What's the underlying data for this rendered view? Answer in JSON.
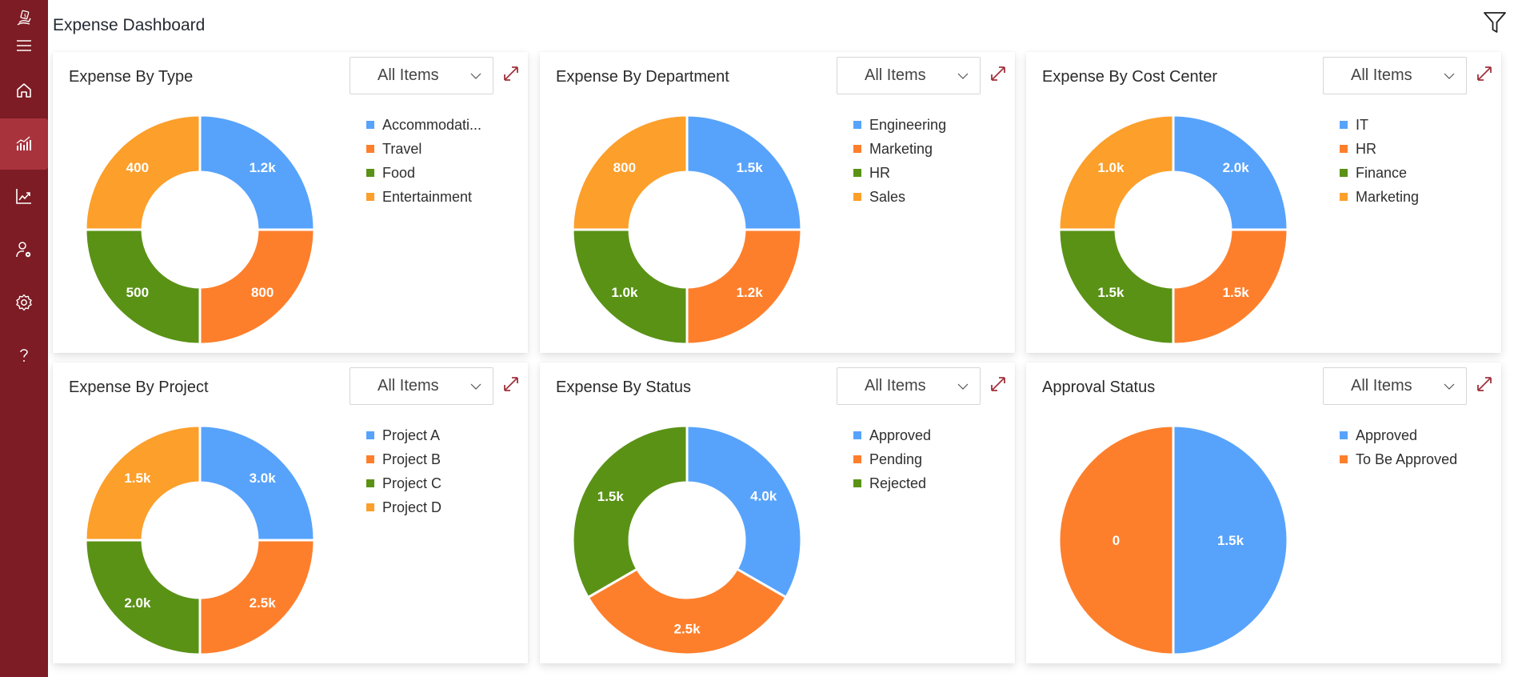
{
  "app": {
    "title": "Expense Dashboard"
  },
  "sidebar": {
    "items": [
      {
        "name": "logo",
        "icon": "expense-logo-icon"
      },
      {
        "name": "menu",
        "icon": "hamburger-menu-icon"
      },
      {
        "name": "home",
        "icon": "home-icon"
      },
      {
        "name": "dashboard",
        "icon": "bar-chart-icon",
        "active": true
      },
      {
        "name": "reports",
        "icon": "trend-chart-icon"
      },
      {
        "name": "user-settings",
        "icon": "user-gear-icon"
      },
      {
        "name": "settings",
        "icon": "gear-icon"
      },
      {
        "name": "help",
        "icon": "question-mark-icon"
      }
    ]
  },
  "toolbar": {
    "filter_icon": "filter-icon"
  },
  "colors": {
    "sidebar": "#7d1c24",
    "sidebar_active": "#a9333d",
    "blue": "#57a3fc",
    "orange": "#fd7f2c",
    "green": "#5a9216",
    "amber": "#fc9f2b",
    "expand_icon": "#a0333d"
  },
  "cards": [
    {
      "title": "Expense By Type",
      "dropdown": "All Items",
      "legend": [
        "Accommodati...",
        "Travel",
        "Food",
        "Entertainment"
      ]
    },
    {
      "title": "Expense By Department",
      "dropdown": "All Items",
      "legend": [
        "Engineering",
        "Marketing",
        "HR",
        "Sales"
      ]
    },
    {
      "title": "Expense By Cost Center",
      "dropdown": "All Items",
      "legend": [
        "IT",
        "HR",
        "Finance",
        "Marketing"
      ]
    },
    {
      "title": "Expense By Project",
      "dropdown": "All Items",
      "legend": [
        "Project A",
        "Project B",
        "Project C",
        "Project D"
      ]
    },
    {
      "title": "Expense By Status",
      "dropdown": "All Items",
      "legend": [
        "Approved",
        "Pending",
        "Rejected"
      ]
    },
    {
      "title": "Approval Status",
      "dropdown": "All Items",
      "legend": [
        "Approved",
        "To Be Approved"
      ]
    }
  ],
  "chart_data": [
    {
      "type": "pie",
      "variant": "donut",
      "title": "Expense By Type",
      "categories": [
        "Accommodation",
        "Travel",
        "Food",
        "Entertainment"
      ],
      "values": [
        1200,
        800,
        500,
        400
      ],
      "labels": [
        "1.2k",
        "800",
        "500",
        "400"
      ],
      "colors": [
        "#57a3fc",
        "#fd7f2c",
        "#5a9216",
        "#fc9f2b"
      ],
      "slice_shares": [
        0.25,
        0.25,
        0.25,
        0.25
      ],
      "legend": "right"
    },
    {
      "type": "pie",
      "variant": "donut",
      "title": "Expense By Department",
      "categories": [
        "Engineering",
        "Marketing",
        "HR",
        "Sales"
      ],
      "values": [
        1500,
        1200,
        1000,
        800
      ],
      "labels": [
        "1.5k",
        "1.2k",
        "1.0k",
        "800"
      ],
      "colors": [
        "#57a3fc",
        "#fd7f2c",
        "#5a9216",
        "#fc9f2b"
      ],
      "slice_shares": [
        0.25,
        0.25,
        0.25,
        0.25
      ],
      "legend": "right"
    },
    {
      "type": "pie",
      "variant": "donut",
      "title": "Expense By Cost Center",
      "categories": [
        "IT",
        "HR",
        "Finance",
        "Marketing"
      ],
      "values": [
        2000,
        1500,
        1500,
        1000
      ],
      "labels": [
        "2.0k",
        "1.5k",
        "1.5k",
        "1.0k"
      ],
      "colors": [
        "#57a3fc",
        "#fd7f2c",
        "#5a9216",
        "#fc9f2b"
      ],
      "slice_shares": [
        0.25,
        0.25,
        0.25,
        0.25
      ],
      "legend": "right"
    },
    {
      "type": "pie",
      "variant": "donut",
      "title": "Expense By Project",
      "categories": [
        "Project A",
        "Project B",
        "Project C",
        "Project D"
      ],
      "values": [
        3000,
        2500,
        2000,
        1500
      ],
      "labels": [
        "3.0k",
        "2.5k",
        "2.0k",
        "1.5k"
      ],
      "colors": [
        "#57a3fc",
        "#fd7f2c",
        "#5a9216",
        "#fc9f2b"
      ],
      "slice_shares": [
        0.25,
        0.25,
        0.25,
        0.25
      ],
      "legend": "right"
    },
    {
      "type": "pie",
      "variant": "donut",
      "title": "Expense By Status",
      "categories": [
        "Approved",
        "Pending",
        "Rejected"
      ],
      "values": [
        4000,
        2500,
        1500
      ],
      "labels": [
        "4.0k",
        "2.5k",
        "1.5k"
      ],
      "colors": [
        "#57a3fc",
        "#fd7f2c",
        "#5a9216"
      ],
      "slice_shares": [
        0.3333,
        0.3333,
        0.3334
      ],
      "legend": "right"
    },
    {
      "type": "pie",
      "variant": "pie",
      "title": "Approval Status",
      "categories": [
        "Approved",
        "To Be Approved"
      ],
      "values": [
        1500,
        0
      ],
      "labels": [
        "1.5k",
        "0"
      ],
      "colors": [
        "#57a3fc",
        "#fd7f2c"
      ],
      "slice_shares": [
        0.5,
        0.5
      ],
      "legend": "right"
    }
  ]
}
